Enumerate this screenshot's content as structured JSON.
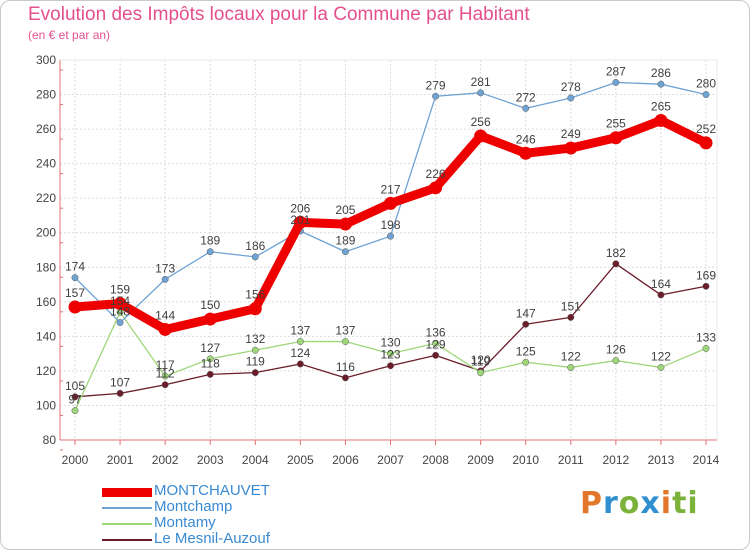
{
  "chart_data": {
    "type": "line",
    "title": "Evolution des Impôts locaux pour la Commune par Habitant",
    "subtitle": "(en € et par an)",
    "x": [
      "2000",
      "2001",
      "2002",
      "2003",
      "2004",
      "2005",
      "2006",
      "2007",
      "2008",
      "2009",
      "2010",
      "2011",
      "2012",
      "2013",
      "2014"
    ],
    "ylim": [
      80,
      300
    ],
    "yticks": [
      80,
      100,
      120,
      140,
      160,
      180,
      200,
      220,
      240,
      260,
      280,
      300
    ],
    "grid": true,
    "legend_position": "bottom-left",
    "series": [
      {
        "name": "MONTCHAUVET",
        "color": "#ee0000",
        "values": [
          157,
          159,
          144,
          150,
          156,
          206,
          205,
          217,
          226,
          256,
          246,
          249,
          255,
          265,
          252
        ]
      },
      {
        "name": "Montchamp",
        "color": "#6ea3d4",
        "values": [
          174,
          148,
          173,
          189,
          186,
          201,
          189,
          198,
          279,
          281,
          272,
          278,
          287,
          286,
          280
        ]
      },
      {
        "name": "Montamy",
        "color": "#9ed67a",
        "values": [
          97,
          154,
          117,
          127,
          132,
          137,
          137,
          130,
          136,
          119,
          125,
          122,
          126,
          122,
          133
        ]
      },
      {
        "name": "Le Mesnil-Auzouf",
        "color": "#6b1d2a",
        "values": [
          105,
          107,
          112,
          118,
          119,
          124,
          116,
          123,
          129,
          120,
          147,
          151,
          182,
          164,
          169
        ]
      }
    ]
  },
  "legend": {
    "items": [
      {
        "label": "MONTCHAUVET",
        "color": "#ee0000",
        "label_color": "#3a8ad2"
      },
      {
        "label": "Montchamp",
        "color": "#6ea3d4",
        "label_color": "#3a8ad2"
      },
      {
        "label": "Montamy",
        "color": "#9ed67a",
        "label_color": "#3a8ad2"
      },
      {
        "label": "Le Mesnil-Auzouf",
        "color": "#6b1d2a",
        "label_color": "#3a8ad2"
      }
    ]
  },
  "brand": {
    "letters": [
      "P",
      "r",
      "o",
      "x",
      "i",
      "ti"
    ]
  }
}
